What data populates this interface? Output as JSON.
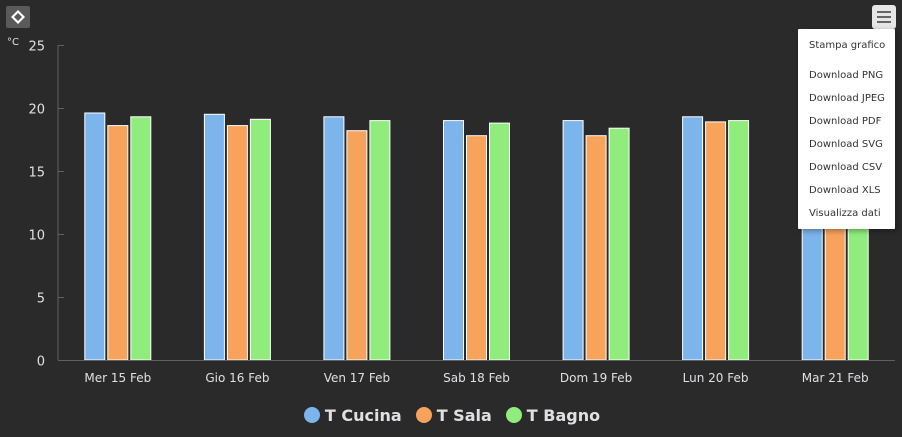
{
  "logo_icon": "diamond-logo-icon",
  "menu_icon": "hamburger-menu-icon",
  "export_menu": {
    "items": [
      "Stampa grafico",
      "Download PNG",
      "Download JPEG",
      "Download PDF",
      "Download SVG",
      "Download CSV",
      "Download XLS",
      "Visualizza dati"
    ]
  },
  "colors": {
    "background": "#2a2a2b",
    "axis_text": "#e0e0e3",
    "gridline": "#505053",
    "T Cucina": "#7cb5ec",
    "T Sala": "#f7a35c",
    "T Bagno": "#90ed7d"
  },
  "chart_data": {
    "type": "bar",
    "title": "",
    "xlabel": "",
    "ylabel": "°C",
    "ylim": [
      0,
      25
    ],
    "yticks": [
      0,
      5,
      10,
      15,
      20,
      25
    ],
    "grid": true,
    "legend_position": "bottom-center",
    "categories": [
      "Mer 15 Feb",
      "Gio 16 Feb",
      "Ven 17 Feb",
      "Sab 18 Feb",
      "Dom 19 Feb",
      "Lun 20 Feb",
      "Mar 21 Feb"
    ],
    "series": [
      {
        "name": "T Cucina",
        "values": [
          19.6,
          19.5,
          19.3,
          19.0,
          19.0,
          19.3,
          19.3
        ]
      },
      {
        "name": "T Sala",
        "values": [
          18.6,
          18.6,
          18.2,
          17.8,
          17.8,
          18.9,
          18.5
        ]
      },
      {
        "name": "T Bagno",
        "values": [
          19.3,
          19.1,
          19.0,
          18.8,
          18.4,
          19.0,
          19.0
        ]
      }
    ]
  }
}
